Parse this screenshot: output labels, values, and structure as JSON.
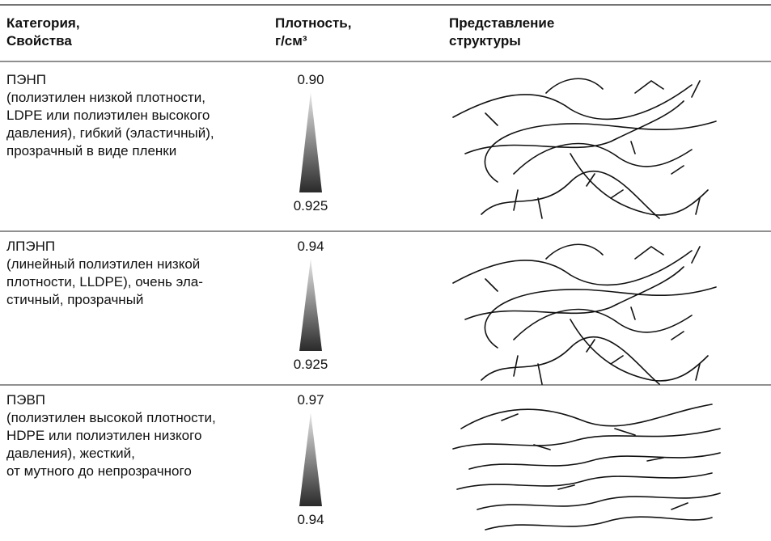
{
  "table": {
    "header": [
      [
        "Категория,",
        "Свойства"
      ],
      [
        "Плотность,",
        "г/см³"
      ],
      [
        "Представление",
        "структуры"
      ]
    ],
    "rows": [
      {
        "description": [
          "ПЭНП",
          "(полиэтилен низкой плотности,",
          "LDPE или полиэтилен высокого",
          "давления), гибкий (эластичный),",
          "прозрачный в виде пленки"
        ],
        "density_top": "0.90",
        "density_bottom": "0.925"
      },
      {
        "description": [
          "ЛПЭНП",
          "(линейный полиэтилен низкой",
          "плотности, LLDPE),  очень эла-",
          "стичный, прозрачный"
        ],
        "density_top": "0.94",
        "density_bottom": "0.925"
      },
      {
        "description": [
          "ПЭВП",
          "(полиэтилен высокой плотности,",
          "HDPE или полиэтилен низкого",
          "давления), жесткий,",
          "от мутного до непрозрачного"
        ],
        "density_top": "0.97",
        "density_bottom": "0.94"
      }
    ]
  }
}
